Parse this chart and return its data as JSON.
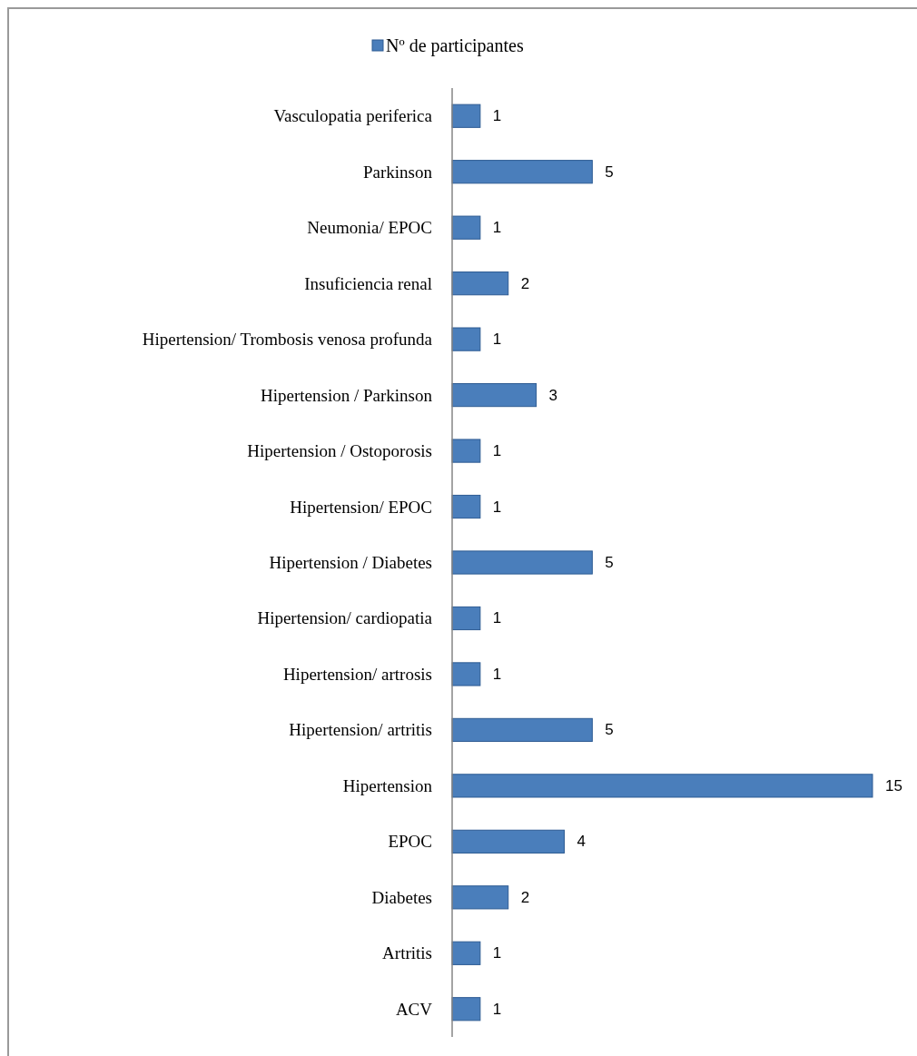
{
  "chart_data": {
    "type": "bar",
    "orientation": "horizontal",
    "categories": [
      "Vasculopatia periferica",
      "Parkinson",
      "Neumonia/ EPOC",
      "Insuficiencia renal",
      "Hipertension/ Trombosis venosa profunda",
      "Hipertension / Parkinson",
      "Hipertension / Ostoporosis",
      "Hipertension/ EPOC",
      "Hipertension / Diabetes",
      "Hipertension/ cardiopatia",
      "Hipertension/ artrosis",
      "Hipertension/ artritis",
      "Hipertension",
      "EPOC",
      "Diabetes",
      "Artritis",
      "ACV"
    ],
    "series": [
      {
        "name": "Nº de participantes",
        "color": "#4a7ebb",
        "values": [
          1,
          5,
          1,
          2,
          1,
          3,
          1,
          1,
          5,
          1,
          1,
          5,
          15,
          4,
          2,
          1,
          1
        ]
      }
    ],
    "data_labels": true,
    "legend": "top"
  }
}
